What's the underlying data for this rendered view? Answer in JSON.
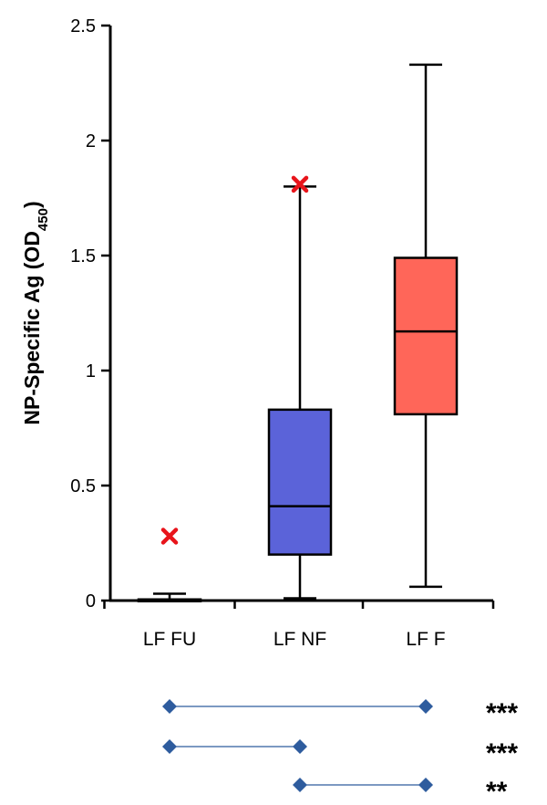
{
  "chart_data": {
    "type": "box",
    "ylabel": "NP-Specific Ag (OD",
    "ylabel_sub": "450",
    "ylabel_close": ")",
    "ylim": [
      0,
      2.5
    ],
    "yticks": [
      0,
      0.5,
      1,
      1.5,
      2,
      2.5
    ],
    "ytick_labels": [
      "0",
      "0.5",
      "1",
      "1.5",
      "2",
      "2.5"
    ],
    "grid": false,
    "categories": [
      "LF FU",
      "LF NF",
      "LF F"
    ],
    "boxes": [
      {
        "category": "LF FU",
        "min": 0,
        "q1": 0,
        "median": 0,
        "q3": 0.005,
        "max": 0.03,
        "outliers": [
          0.28
        ],
        "color": "#000000"
      },
      {
        "category": "LF NF",
        "min": 0.01,
        "q1": 0.2,
        "median": 0.41,
        "q3": 0.83,
        "max": 1.8,
        "outliers": [
          1.81
        ],
        "color": "#5B63D9"
      },
      {
        "category": "LF F",
        "min": 0.06,
        "q1": 0.81,
        "median": 1.17,
        "q3": 1.49,
        "max": 2.33,
        "outliers": [],
        "color": "#FF6659"
      }
    ],
    "outlier_color": "#E8141B",
    "comparisons": [
      {
        "from": "LF FU",
        "to": "LF F",
        "label": "***"
      },
      {
        "from": "LF FU",
        "to": "LF NF",
        "label": "***"
      },
      {
        "from": "LF NF",
        "to": "LF F",
        "label": "**"
      }
    ],
    "comparison_color": "#2E5C9E"
  }
}
